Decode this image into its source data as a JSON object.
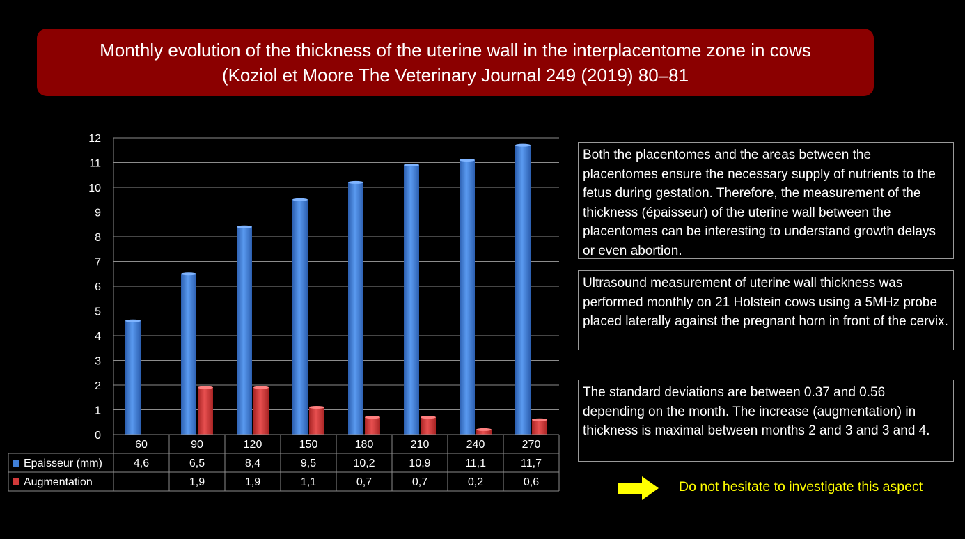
{
  "title": {
    "line1": "Monthly evolution of the thickness of the uterine wall in the interplacentome zone in cows",
    "line2": "(Koziol et Moore The Veterinary Journal 249 (2019) 80–81"
  },
  "chart_data": {
    "type": "bar",
    "categories": [
      "60",
      "90",
      "120",
      "150",
      "180",
      "210",
      "240",
      "270"
    ],
    "series": [
      {
        "name": "Epaisseur (mm)",
        "values": [
          4.6,
          6.5,
          8.4,
          9.5,
          10.2,
          10.9,
          11.1,
          11.7
        ],
        "labels": [
          "4,6",
          "6,5",
          "8,4",
          "9,5",
          "10,2",
          "10,9",
          "11,1",
          "11,7"
        ],
        "color": "#3f7fd8"
      },
      {
        "name": "Augmentation",
        "values": [
          null,
          1.9,
          1.9,
          1.1,
          0.7,
          0.7,
          0.2,
          0.6
        ],
        "labels": [
          "",
          "1,9",
          "1,9",
          "1,1",
          "0,7",
          "0,7",
          "0,2",
          "0,6"
        ],
        "color": "#d23a3a"
      }
    ],
    "yticks": [
      0,
      1,
      2,
      3,
      4,
      5,
      6,
      7,
      8,
      9,
      10,
      11,
      12
    ],
    "ylim": [
      0,
      12
    ],
    "grid": true,
    "legend": "data-table"
  },
  "info": {
    "box1": "Both the placentomes and the areas between the placentomes ensure the necessary supply of nutrients to the fetus during gestation. Therefore, the measurement of the thickness (épaisseur) of the uterine wall between the placentomes can be interesting to understand growth delays or even abortion.",
    "box2": "Ultrasound measurement of uterine wall thickness was performed monthly on 21 Holstein cows using a 5MHz probe placed laterally against the pregnant horn in front of the cervix.",
    "box3": "The standard deviations are between 0.37 and 0.56 depending on the month. The increase  (augmentation) in thickness is maximal between months 2 and 3 and 3 and 4."
  },
  "note": "Do not hesitate to investigate this aspect"
}
